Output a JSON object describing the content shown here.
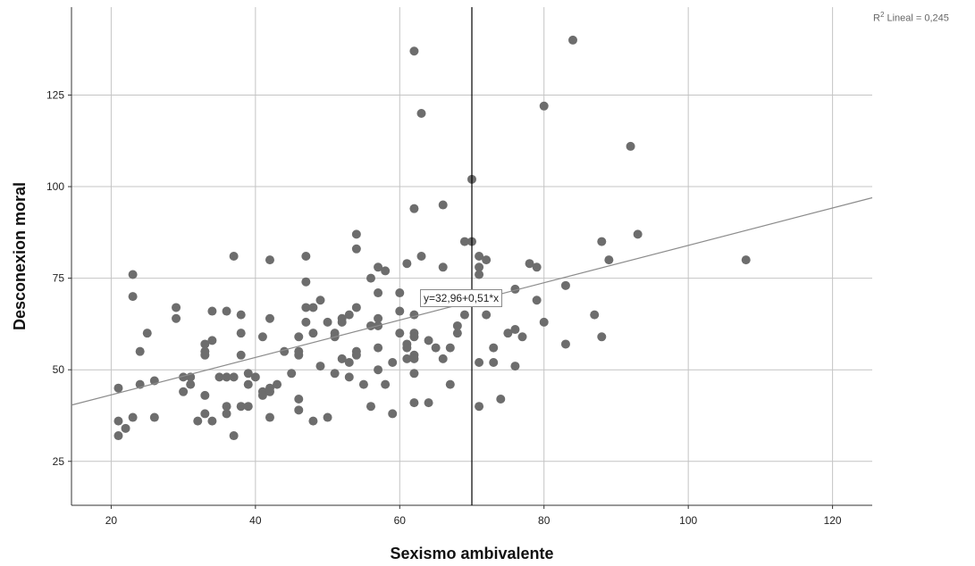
{
  "chart_data": {
    "type": "scatter",
    "xlabel": "Sexismo ambivalente",
    "ylabel": "Desconexion moral",
    "xlim": [
      14.5,
      125.5
    ],
    "ylim": [
      13,
      149
    ],
    "xticks": [
      20,
      40,
      60,
      80,
      100,
      120
    ],
    "yticks": [
      25,
      50,
      75,
      100,
      125
    ],
    "grid": true,
    "fit_line": {
      "intercept": 32.96,
      "slope": 0.51,
      "label": "y=32,96+0,51*x"
    },
    "r2": {
      "prefix": "R",
      "sup": "2",
      "text": " Lineal = 0,245"
    },
    "reference_line_x": 70,
    "point_color": "#6d6d6d",
    "fit_color": "#8c8c8c",
    "grid_color": "#c4c4c4",
    "points": [
      [
        21,
        45
      ],
      [
        21,
        36
      ],
      [
        21,
        32
      ],
      [
        22,
        34
      ],
      [
        23,
        76
      ],
      [
        23,
        70
      ],
      [
        23,
        37
      ],
      [
        24,
        55
      ],
      [
        24,
        46
      ],
      [
        25,
        60
      ],
      [
        26,
        47
      ],
      [
        26,
        37
      ],
      [
        29,
        67
      ],
      [
        29,
        64
      ],
      [
        30,
        48
      ],
      [
        30,
        44
      ],
      [
        31,
        48
      ],
      [
        31,
        46
      ],
      [
        32,
        36
      ],
      [
        33,
        57
      ],
      [
        33,
        55
      ],
      [
        33,
        54
      ],
      [
        33,
        43
      ],
      [
        33,
        38
      ],
      [
        34,
        66
      ],
      [
        34,
        58
      ],
      [
        34,
        36
      ],
      [
        35,
        48
      ],
      [
        36,
        66
      ],
      [
        36,
        48
      ],
      [
        36,
        40
      ],
      [
        36,
        38
      ],
      [
        37,
        81
      ],
      [
        37,
        48
      ],
      [
        37,
        32
      ],
      [
        38,
        65
      ],
      [
        38,
        60
      ],
      [
        38,
        54
      ],
      [
        38,
        40
      ],
      [
        39,
        49
      ],
      [
        39,
        46
      ],
      [
        39,
        40
      ],
      [
        40,
        48
      ],
      [
        41,
        59
      ],
      [
        41,
        44
      ],
      [
        41,
        43
      ],
      [
        42,
        80
      ],
      [
        42,
        64
      ],
      [
        42,
        45
      ],
      [
        42,
        44
      ],
      [
        42,
        37
      ],
      [
        43,
        46
      ],
      [
        44,
        55
      ],
      [
        45,
        49
      ],
      [
        46,
        59
      ],
      [
        46,
        55
      ],
      [
        46,
        54
      ],
      [
        46,
        42
      ],
      [
        46,
        39
      ],
      [
        47,
        81
      ],
      [
        47,
        74
      ],
      [
        47,
        67
      ],
      [
        47,
        63
      ],
      [
        48,
        67
      ],
      [
        48,
        60
      ],
      [
        48,
        36
      ],
      [
        49,
        69
      ],
      [
        49,
        51
      ],
      [
        50,
        63
      ],
      [
        50,
        37
      ],
      [
        51,
        60
      ],
      [
        51,
        59
      ],
      [
        51,
        49
      ],
      [
        52,
        64
      ],
      [
        52,
        63
      ],
      [
        52,
        53
      ],
      [
        53,
        65
      ],
      [
        53,
        52
      ],
      [
        53,
        48
      ],
      [
        54,
        87
      ],
      [
        54,
        83
      ],
      [
        54,
        67
      ],
      [
        54,
        55
      ],
      [
        54,
        54
      ],
      [
        55,
        46
      ],
      [
        56,
        75
      ],
      [
        56,
        62
      ],
      [
        56,
        40
      ],
      [
        57,
        78
      ],
      [
        57,
        71
      ],
      [
        57,
        64
      ],
      [
        57,
        62
      ],
      [
        57,
        56
      ],
      [
        57,
        50
      ],
      [
        58,
        77
      ],
      [
        58,
        46
      ],
      [
        59,
        52
      ],
      [
        59,
        38
      ],
      [
        60,
        71
      ],
      [
        60,
        66
      ],
      [
        60,
        60
      ],
      [
        61,
        79
      ],
      [
        61,
        57
      ],
      [
        61,
        56
      ],
      [
        61,
        53
      ],
      [
        62,
        137
      ],
      [
        62,
        94
      ],
      [
        62,
        65
      ],
      [
        62,
        60
      ],
      [
        62,
        59
      ],
      [
        62,
        54
      ],
      [
        62,
        53
      ],
      [
        62,
        49
      ],
      [
        62,
        41
      ],
      [
        63,
        120
      ],
      [
        63,
        81
      ],
      [
        64,
        58
      ],
      [
        64,
        41
      ],
      [
        65,
        56
      ],
      [
        66,
        95
      ],
      [
        66,
        78
      ],
      [
        66,
        53
      ],
      [
        67,
        56
      ],
      [
        67,
        46
      ],
      [
        68,
        62
      ],
      [
        68,
        60
      ],
      [
        69,
        85
      ],
      [
        69,
        65
      ],
      [
        70,
        102
      ],
      [
        70,
        85
      ],
      [
        71,
        81
      ],
      [
        71,
        78
      ],
      [
        71,
        76
      ],
      [
        71,
        52
      ],
      [
        71,
        40
      ],
      [
        72,
        80
      ],
      [
        72,
        65
      ],
      [
        73,
        56
      ],
      [
        73,
        52
      ],
      [
        74,
        42
      ],
      [
        75,
        60
      ],
      [
        76,
        72
      ],
      [
        76,
        61
      ],
      [
        76,
        51
      ],
      [
        77,
        59
      ],
      [
        78,
        79
      ],
      [
        79,
        78
      ],
      [
        79,
        69
      ],
      [
        80,
        122
      ],
      [
        80,
        63
      ],
      [
        83,
        73
      ],
      [
        83,
        57
      ],
      [
        84,
        140
      ],
      [
        87,
        65
      ],
      [
        88,
        85
      ],
      [
        88,
        59
      ],
      [
        89,
        80
      ],
      [
        92,
        111
      ],
      [
        93,
        87
      ],
      [
        108,
        80
      ]
    ]
  }
}
